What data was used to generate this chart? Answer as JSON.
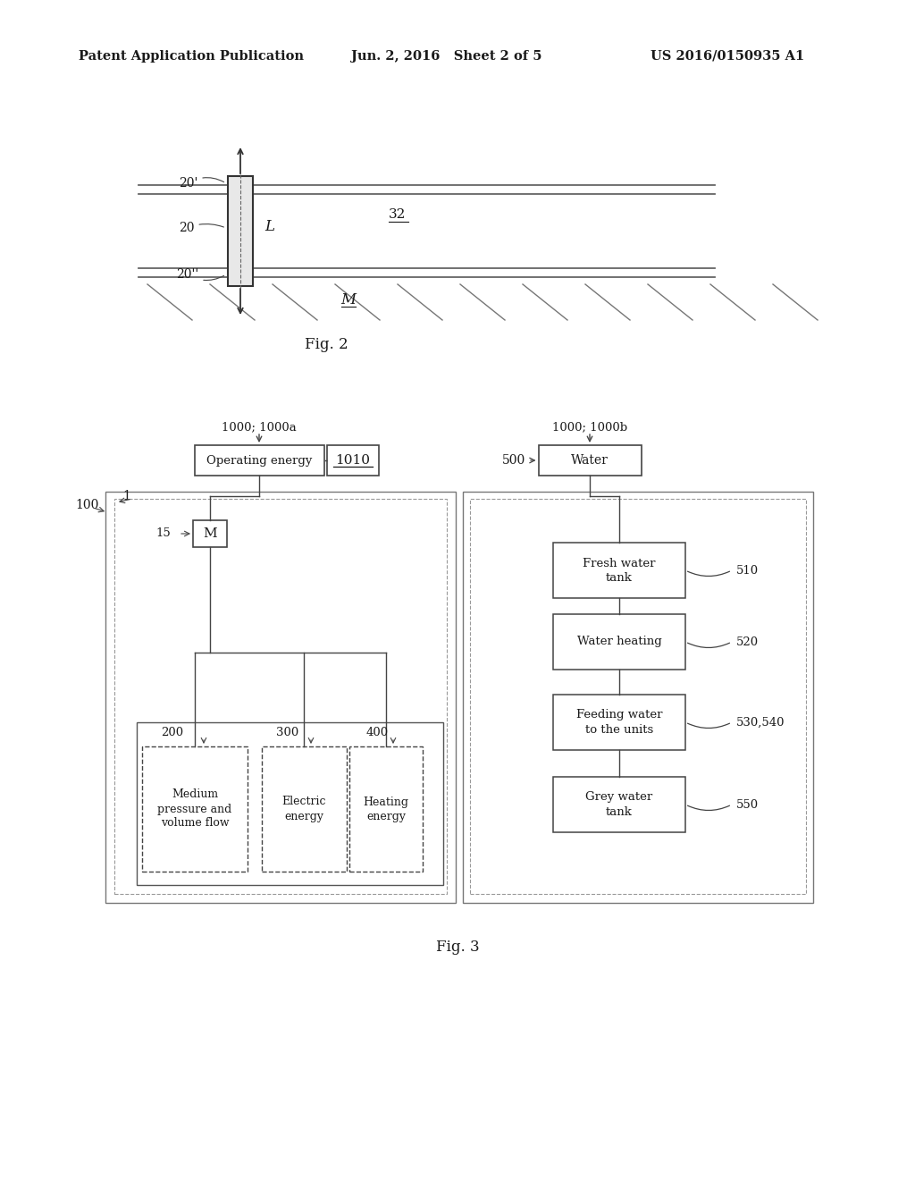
{
  "bg_color": "#ffffff",
  "header_left": "Patent Application Publication",
  "header_mid": "Jun. 2, 2016   Sheet 2 of 5",
  "header_right": "US 2016/0150935 A1",
  "fig2_label": "Fig. 2",
  "fig3_label": "Fig. 3",
  "text_color": "#1a1a1a",
  "box_edge_color": "#444444",
  "line_color": "#444444",
  "gray_line": "#999999"
}
